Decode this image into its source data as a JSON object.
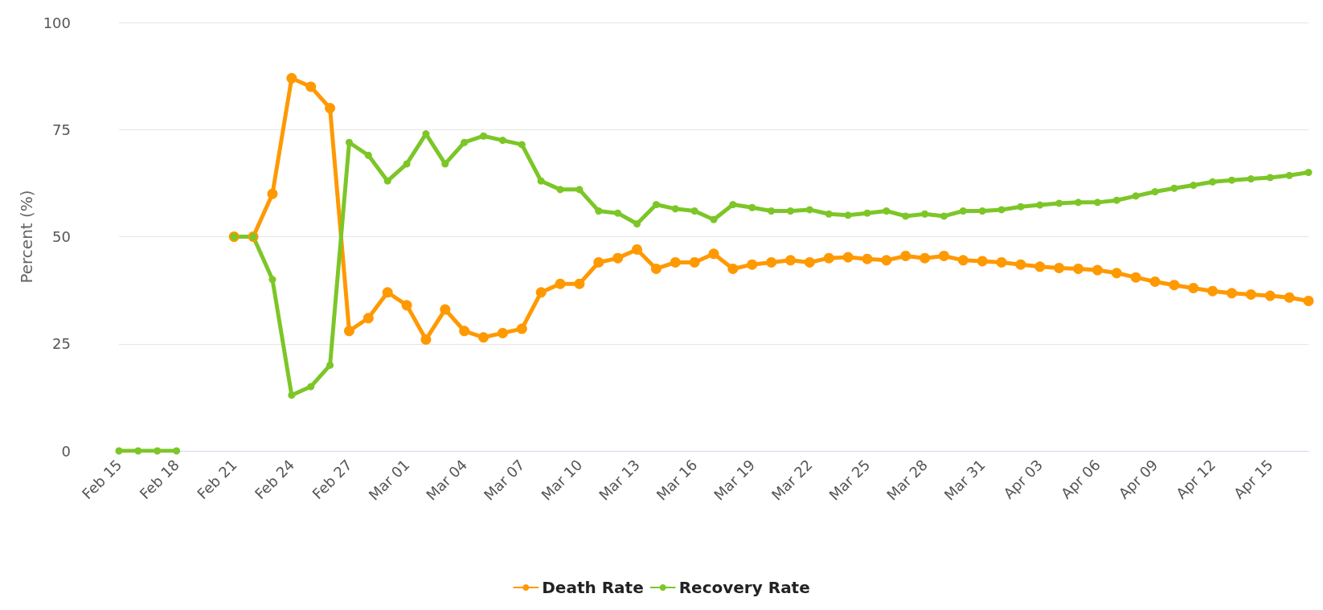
{
  "chart_data": {
    "type": "line",
    "ylabel": "Percent (%)",
    "categories": [
      "Feb 15",
      null,
      null,
      "Feb 18",
      null,
      null,
      "Feb 21",
      null,
      null,
      "Feb 24",
      null,
      null,
      "Feb 27",
      null,
      null,
      "Mar 01",
      null,
      null,
      "Mar 04",
      null,
      null,
      "Mar 07",
      null,
      null,
      "Mar 10",
      null,
      null,
      "Mar 13",
      null,
      null,
      "Mar 16",
      null,
      null,
      "Mar 19",
      null,
      null,
      "Mar 22",
      null,
      null,
      "Mar 25",
      null,
      null,
      "Mar 28",
      null,
      null,
      "Mar 31",
      null,
      null,
      "Apr 03",
      null,
      null,
      "Apr 06",
      null,
      null,
      "Apr 09",
      null,
      null,
      "Apr 12",
      null,
      null,
      "Apr 15",
      null,
      null
    ],
    "series": [
      {
        "name": "Death Rate",
        "color": "#ff9900",
        "values": [
          null,
          null,
          null,
          null,
          null,
          null,
          50,
          50,
          60,
          87,
          85,
          80,
          28,
          31,
          37,
          34,
          26,
          33,
          28,
          26.5,
          27.5,
          28.5,
          37,
          39,
          39,
          44,
          45,
          47,
          42.5,
          44,
          44,
          46,
          42.5,
          43.5,
          44,
          44.5,
          44,
          45,
          45.2,
          44.8,
          44.5,
          45.5,
          45,
          45.5,
          44.5,
          44.3,
          44,
          43.5,
          43,
          42.7,
          42.5,
          42.2,
          41.5,
          40.5,
          39.5,
          38.7,
          38,
          37.3,
          36.8,
          36.5,
          36.2,
          35.8,
          35
        ]
      },
      {
        "name": "Recovery Rate",
        "color": "#7cc627",
        "values": [
          0,
          0,
          0,
          0,
          null,
          null,
          50,
          50,
          40,
          13,
          15,
          20,
          72,
          69,
          63,
          67,
          74,
          67,
          72,
          73.5,
          72.5,
          71.5,
          63,
          61,
          61,
          56,
          55.5,
          53,
          57.5,
          56.5,
          56,
          54,
          57.5,
          56.8,
          56,
          56,
          56.3,
          55.3,
          55,
          55.5,
          56,
          54.8,
          55.3,
          54.8,
          56,
          56,
          56.3,
          57,
          57.4,
          57.8,
          58,
          58,
          58.5,
          59.5,
          60.5,
          61.3,
          62,
          62.8,
          63.2,
          63.5,
          63.8,
          64.3,
          65
        ]
      }
    ],
    "ylim": [
      0,
      100
    ],
    "yticks": [
      0,
      25,
      50,
      75,
      100
    ],
    "grid": "y",
    "legend": "bottom",
    "marker": "circle",
    "line_style": "solid"
  }
}
